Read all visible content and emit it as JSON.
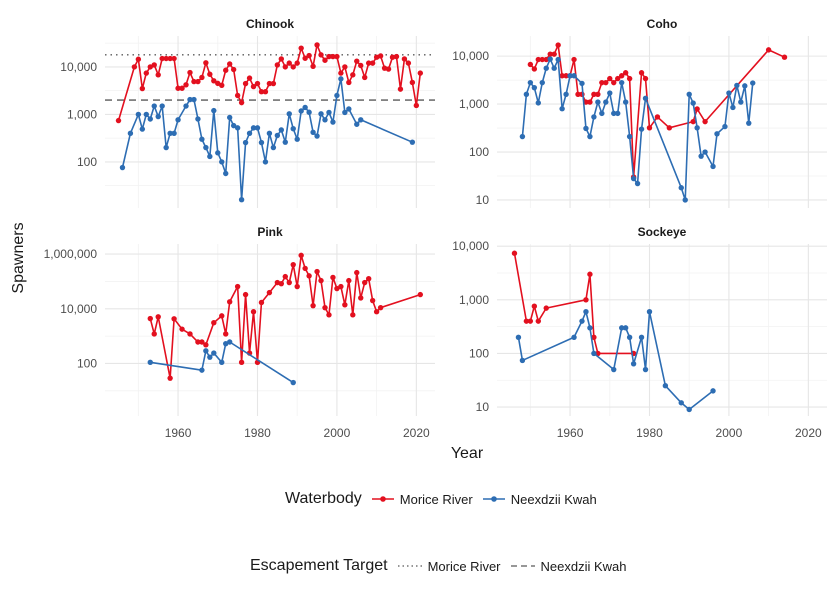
{
  "chart_data": {
    "type": "line",
    "y_scale": "log10",
    "xlabel": "Year",
    "ylabel": "Spawners",
    "xlim": [
      1941.6,
      2024.7
    ],
    "xticks": [
      1960,
      1980,
      2000,
      2020
    ],
    "grid": true,
    "colors": {
      "Morice River": "#e3101f",
      "Neexdzii Kwah": "#2d6db3",
      "target": "#595959"
    },
    "facets": [
      {
        "title": "Chinook",
        "ylim": [
          10.7,
          44700
        ],
        "yticks": [
          100,
          1000,
          10000
        ],
        "ytick_labels": [
          "100",
          "1,000",
          "10,000"
        ],
        "targets": [
          {
            "name": "Morice River",
            "value": 18000,
            "style": "dotted"
          },
          {
            "name": "Neexdzii Kwah",
            "value": 2000,
            "style": "dashed"
          }
        ],
        "series": [
          {
            "name": "Morice River",
            "x": [
              1945,
              1949,
              1950,
              1951,
              1952,
              1953,
              1954,
              1955,
              1956,
              1957,
              1958,
              1959,
              1960,
              1961,
              1962,
              1963,
              1964,
              1965,
              1966,
              1967,
              1968,
              1969,
              1970,
              1971,
              1972,
              1973,
              1974,
              1975,
              1976,
              1977,
              1978,
              1979,
              1980,
              1981,
              1982,
              1983,
              1984,
              1985,
              1986,
              1987,
              1988,
              1989,
              1990,
              1991,
              1992,
              1993,
              1994,
              1995,
              1996,
              1997,
              1998,
              1999,
              2000,
              2001,
              2002,
              2003,
              2004,
              2005,
              2006,
              2007,
              2008,
              2009,
              2010,
              2011,
              2012,
              2013,
              2014,
              2015,
              2016,
              2017,
              2018,
              2019,
              2020,
              2021
            ],
            "y": [
              740,
              10000,
              14500,
              3500,
              7400,
              10000,
              11000,
              6800,
              15000,
              15000,
              15000,
              15000,
              3550,
              3550,
              4200,
              7600,
              4900,
              4900,
              6000,
              12200,
              7000,
              5100,
              4500,
              4100,
              8500,
              11500,
              8800,
              2500,
              1770,
              4450,
              5800,
              3850,
              4450,
              3000,
              3000,
              4450,
              4450,
              11000,
              14700,
              10000,
              12000,
              10000,
              12000,
              24800,
              15200,
              17300,
              10300,
              29000,
              17900,
              13800,
              16500,
              16500,
              16500,
              7400,
              10000,
              4700,
              6800,
              13200,
              10700,
              6000,
              12000,
              12000,
              16000,
              17000,
              9400,
              9000,
              16000,
              16500,
              3400,
              14700,
              12000,
              4700,
              1540,
              7400
            ]
          },
          {
            "name": "Neexdzii Kwah",
            "x": [
              1946,
              1948,
              1950,
              1951,
              1952,
              1953,
              1954,
              1955,
              1956,
              1957,
              1958,
              1959,
              1960,
              1962,
              1963,
              1964,
              1965,
              1966,
              1967,
              1968,
              1969,
              1970,
              1971,
              1972,
              1973,
              1974,
              1975,
              1976,
              1977,
              1978,
              1979,
              1980,
              1981,
              1982,
              1983,
              1984,
              1985,
              1986,
              1987,
              1988,
              1989,
              1990,
              1991,
              1992,
              1993,
              1994,
              1995,
              1996,
              1997,
              1998,
              1999,
              2000,
              2001,
              2002,
              2003,
              2005,
              2006,
              2019
            ],
            "y": [
              76,
              400,
              1000,
              490,
              1000,
              800,
              1500,
              900,
              1500,
              200,
              400,
              400,
              770,
              1500,
              2050,
              2050,
              800,
              300,
              200,
              130,
              1200,
              155,
              100,
              57,
              860,
              580,
              520,
              16,
              255,
              400,
              520,
              520,
              255,
              100,
              400,
              200,
              360,
              470,
              260,
              1030,
              500,
              300,
              1180,
              1400,
              1110,
              420,
              350,
              1030,
              770,
              1100,
              690,
              2500,
              5600,
              1100,
              1300,
              620,
              770,
              260
            ]
          }
        ]
      },
      {
        "title": "Coho",
        "ylim": [
          6.8,
          26300
        ],
        "yticks": [
          10,
          100,
          1000,
          10000
        ],
        "ytick_labels": [
          "10",
          "100",
          "1,000",
          "10,000"
        ],
        "targets": [],
        "series": [
          {
            "name": "Morice River",
            "x": [
              1950,
              1951,
              1952,
              1953,
              1954,
              1955,
              1956,
              1957,
              1958,
              1959,
              1960,
              1961,
              1962,
              1963,
              1964,
              1965,
              1966,
              1967,
              1968,
              1969,
              1970,
              1971,
              1972,
              1973,
              1974,
              1975,
              1976,
              1978,
              1979,
              1980,
              1982,
              1985,
              1991,
              1992,
              1994,
              2010,
              2014
            ],
            "y": [
              6700,
              5400,
              8500,
              8500,
              8500,
              11000,
              11000,
              17000,
              3900,
              3900,
              3900,
              8500,
              1600,
              1600,
              1100,
              1100,
              1600,
              1600,
              2800,
              2800,
              3400,
              2800,
              3400,
              3900,
              4500,
              3400,
              30,
              4500,
              3400,
              320,
              540,
              320,
              430,
              790,
              430,
              13500,
              9500
            ]
          },
          {
            "name": "Neexdzii Kwah",
            "x": [
              1948,
              1949,
              1950,
              1951,
              1952,
              1953,
              1954,
              1955,
              1956,
              1957,
              1958,
              1959,
              1960,
              1961,
              1963,
              1964,
              1965,
              1966,
              1967,
              1968,
              1969,
              1970,
              1971,
              1972,
              1973,
              1974,
              1975,
              1976,
              1977,
              1978,
              1979,
              1988,
              1989,
              1990,
              1991,
              1992,
              1993,
              1994,
              1996,
              1997,
              1999,
              2000,
              2001,
              2002,
              2003,
              2004,
              2005,
              2006
            ],
            "y": [
              210,
              1600,
              2800,
              2200,
              1060,
              2800,
              5600,
              8700,
              5600,
              8500,
              800,
              1600,
              3900,
              3900,
              2700,
              310,
              210,
              540,
              1100,
              640,
              1100,
              1700,
              640,
              640,
              2800,
              1100,
              210,
              28,
              22,
              300,
              1320,
              18,
              10,
              1600,
              1050,
              320,
              82,
              100,
              50,
              240,
              340,
              1700,
              850,
              2450,
              1100,
              2400,
              400,
              2750
            ]
          }
        ]
      },
      {
        "title": "Pink",
        "ylim": [
          1.2,
          2340000
        ],
        "yticks": [
          100,
          10000,
          1000000
        ],
        "ytick_labels": [
          "100",
          "10,000",
          "1,000,000"
        ],
        "targets": [],
        "series": [
          {
            "name": "Morice River",
            "x": [
              1953,
              1954,
              1955,
              1958,
              1959,
              1961,
              1963,
              1965,
              1966,
              1967,
              1969,
              1971,
              1972,
              1973,
              1975,
              1976,
              1977,
              1978,
              1979,
              1980,
              1981,
              1983,
              1985,
              1986,
              1987,
              1988,
              1989,
              1990,
              1991,
              1992,
              1993,
              1994,
              1995,
              1996,
              1997,
              1998,
              1999,
              2000,
              2001,
              2002,
              2003,
              2004,
              2005,
              2006,
              2007,
              2008,
              2009,
              2010,
              2011,
              2021
            ],
            "y": [
              4400,
              1200,
              5100,
              29,
              4300,
              1800,
              1200,
              610,
              610,
              480,
              3100,
              5500,
              1200,
              18000,
              65000,
              110,
              33000,
              240,
              7800,
              110,
              17000,
              39000,
              91000,
              83000,
              150000,
              91000,
              410000,
              65000,
              900000,
              300000,
              160000,
              13000,
              230000,
              107000,
              11000,
              6000,
              140000,
              55000,
              65000,
              14000,
              107000,
              6000,
              210000,
              25000,
              91000,
              126000,
              20000,
              7800,
              11000,
              33000
            ]
          },
          {
            "name": "Neexdzii Kwah",
            "x": [
              1953,
              1966,
              1967,
              1968,
              1969,
              1971,
              1972,
              1973,
              1989
            ],
            "y": [
              110,
              57,
              290,
              170,
              240,
              110,
              530,
              610,
              20
            ]
          }
        ]
      },
      {
        "title": "Sockeye",
        "ylim": [
          6.8,
          11000
        ],
        "yticks": [
          10,
          100,
          1000,
          10000
        ],
        "ytick_labels": [
          "10",
          "100",
          "1,000",
          "10,000"
        ],
        "targets": [],
        "series": [
          {
            "name": "Morice River",
            "x": [
              1946,
              1949,
              1950,
              1951,
              1952,
              1954,
              1964,
              1965,
              1966,
              1967,
              1976
            ],
            "y": [
              7400,
              400,
              400,
              760,
              400,
              700,
              1000,
              3000,
              200,
              100,
              100
            ]
          },
          {
            "name": "Neexdzii Kwah",
            "x": [
              1947,
              1948,
              1961,
              1963,
              1964,
              1965,
              1966,
              1971,
              1973,
              1974,
              1975,
              1976,
              1978,
              1979,
              1980,
              1984,
              1988,
              1990,
              1996
            ],
            "y": [
              200,
              74,
              200,
              400,
              600,
              300,
              100,
              50,
              300,
              300,
              200,
              64,
              200,
              50,
              600,
              25,
              12,
              9,
              20
            ]
          }
        ]
      }
    ]
  },
  "legend_waterbody": {
    "title": "Waterbody",
    "items": [
      "Morice River",
      "Neexdzii Kwah"
    ]
  },
  "legend_target": {
    "title": "Escapement Target",
    "items": [
      "Morice River",
      "Neexdzii Kwah"
    ]
  }
}
